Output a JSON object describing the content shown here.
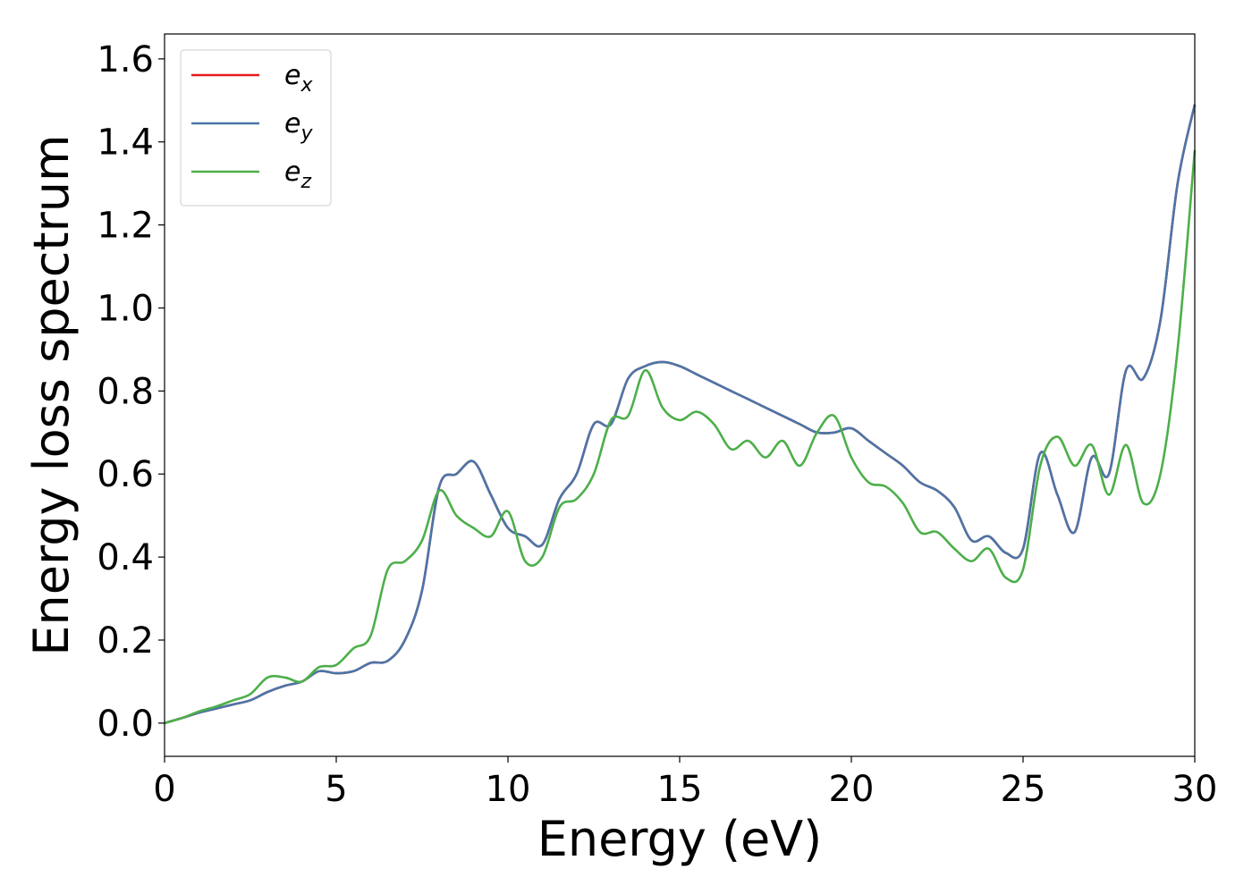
{
  "chart_data": {
    "type": "line",
    "xlabel": "Energy (eV)",
    "ylabel": "Energy loss spectrum",
    "xlim": [
      0,
      30
    ],
    "ylim": [
      -0.08,
      1.66
    ],
    "xticks": [
      0,
      5,
      10,
      15,
      20,
      25,
      30
    ],
    "xtick_labels": [
      "0",
      "5",
      "10",
      "15",
      "20",
      "25",
      "30"
    ],
    "yticks": [
      0.0,
      0.2,
      0.4,
      0.6,
      0.8,
      1.0,
      1.2,
      1.4,
      1.6
    ],
    "ytick_labels": [
      "0.0",
      "0.2",
      "0.4",
      "0.6",
      "0.8",
      "1.0",
      "1.2",
      "1.4",
      "1.6"
    ],
    "grid": false,
    "legend_position": "top-left",
    "series": [
      {
        "name": "e_x",
        "legend_base": "e",
        "legend_sub": "x",
        "color": "#e41a1c",
        "x": [
          0,
          0.5,
          1,
          1.5,
          2,
          2.5,
          3,
          3.5,
          4,
          4.5,
          5,
          5.5,
          6,
          6.5,
          7,
          7.5,
          8,
          8.5,
          9,
          9.5,
          10,
          10.5,
          11,
          11.5,
          12,
          12.5,
          13,
          13.5,
          14,
          14.5,
          15,
          15.5,
          16,
          16.5,
          17,
          17.5,
          18,
          18.5,
          19,
          19.5,
          20,
          20.5,
          21,
          21.5,
          22,
          22.5,
          23,
          23.5,
          24,
          24.5,
          25,
          25.5,
          26,
          26.5,
          27,
          27.5,
          28,
          28.5,
          29,
          29.5,
          30
        ],
        "y": [
          0,
          0.012,
          0.025,
          0.035,
          0.045,
          0.055,
          0.075,
          0.09,
          0.1,
          0.125,
          0.12,
          0.125,
          0.145,
          0.15,
          0.2,
          0.32,
          0.57,
          0.6,
          0.63,
          0.55,
          0.47,
          0.45,
          0.43,
          0.54,
          0.6,
          0.72,
          0.72,
          0.83,
          0.86,
          0.87,
          0.86,
          0.84,
          0.82,
          0.8,
          0.78,
          0.76,
          0.74,
          0.72,
          0.7,
          0.7,
          0.71,
          0.68,
          0.65,
          0.62,
          0.58,
          0.56,
          0.52,
          0.44,
          0.45,
          0.41,
          0.42,
          0.65,
          0.55,
          0.46,
          0.64,
          0.6,
          0.85,
          0.83,
          0.97,
          1.3,
          1.49
        ]
      },
      {
        "name": "e_y",
        "legend_base": "e",
        "legend_sub": "y",
        "color": "#4a76a8",
        "x": [
          0,
          0.5,
          1,
          1.5,
          2,
          2.5,
          3,
          3.5,
          4,
          4.5,
          5,
          5.5,
          6,
          6.5,
          7,
          7.5,
          8,
          8.5,
          9,
          9.5,
          10,
          10.5,
          11,
          11.5,
          12,
          12.5,
          13,
          13.5,
          14,
          14.5,
          15,
          15.5,
          16,
          16.5,
          17,
          17.5,
          18,
          18.5,
          19,
          19.5,
          20,
          20.5,
          21,
          21.5,
          22,
          22.5,
          23,
          23.5,
          24,
          24.5,
          25,
          25.5,
          26,
          26.5,
          27,
          27.5,
          28,
          28.5,
          29,
          29.5,
          30
        ],
        "y": [
          0,
          0.012,
          0.025,
          0.035,
          0.045,
          0.055,
          0.075,
          0.09,
          0.1,
          0.125,
          0.12,
          0.125,
          0.145,
          0.15,
          0.2,
          0.32,
          0.57,
          0.6,
          0.63,
          0.55,
          0.47,
          0.45,
          0.43,
          0.54,
          0.6,
          0.72,
          0.72,
          0.83,
          0.86,
          0.87,
          0.86,
          0.84,
          0.82,
          0.8,
          0.78,
          0.76,
          0.74,
          0.72,
          0.7,
          0.7,
          0.71,
          0.68,
          0.65,
          0.62,
          0.58,
          0.56,
          0.52,
          0.44,
          0.45,
          0.41,
          0.42,
          0.65,
          0.55,
          0.46,
          0.64,
          0.6,
          0.85,
          0.83,
          0.97,
          1.3,
          1.49
        ]
      },
      {
        "name": "e_z",
        "legend_base": "e",
        "legend_sub": "z",
        "color": "#4daf4a",
        "x": [
          0,
          0.5,
          1,
          1.5,
          2,
          2.5,
          3,
          3.5,
          4,
          4.5,
          5,
          5.5,
          6,
          6.5,
          7,
          7.5,
          8,
          8.5,
          9,
          9.5,
          10,
          10.5,
          11,
          11.5,
          12,
          12.5,
          13,
          13.5,
          14,
          14.5,
          15,
          15.5,
          16,
          16.5,
          17,
          17.5,
          18,
          18.5,
          19,
          19.5,
          20,
          20.5,
          21,
          21.5,
          22,
          22.5,
          23,
          23.5,
          24,
          24.5,
          25,
          25.5,
          26,
          26.5,
          27,
          27.5,
          28,
          28.5,
          29,
          29.5,
          30
        ],
        "y": [
          0,
          0.012,
          0.028,
          0.04,
          0.055,
          0.07,
          0.11,
          0.11,
          0.1,
          0.135,
          0.14,
          0.18,
          0.21,
          0.37,
          0.39,
          0.44,
          0.56,
          0.5,
          0.47,
          0.45,
          0.51,
          0.39,
          0.4,
          0.52,
          0.54,
          0.6,
          0.73,
          0.74,
          0.85,
          0.76,
          0.73,
          0.75,
          0.72,
          0.66,
          0.68,
          0.64,
          0.68,
          0.62,
          0.7,
          0.74,
          0.64,
          0.58,
          0.57,
          0.53,
          0.46,
          0.46,
          0.42,
          0.39,
          0.42,
          0.35,
          0.37,
          0.62,
          0.69,
          0.62,
          0.67,
          0.55,
          0.67,
          0.53,
          0.6,
          0.9,
          1.38
        ]
      }
    ]
  }
}
